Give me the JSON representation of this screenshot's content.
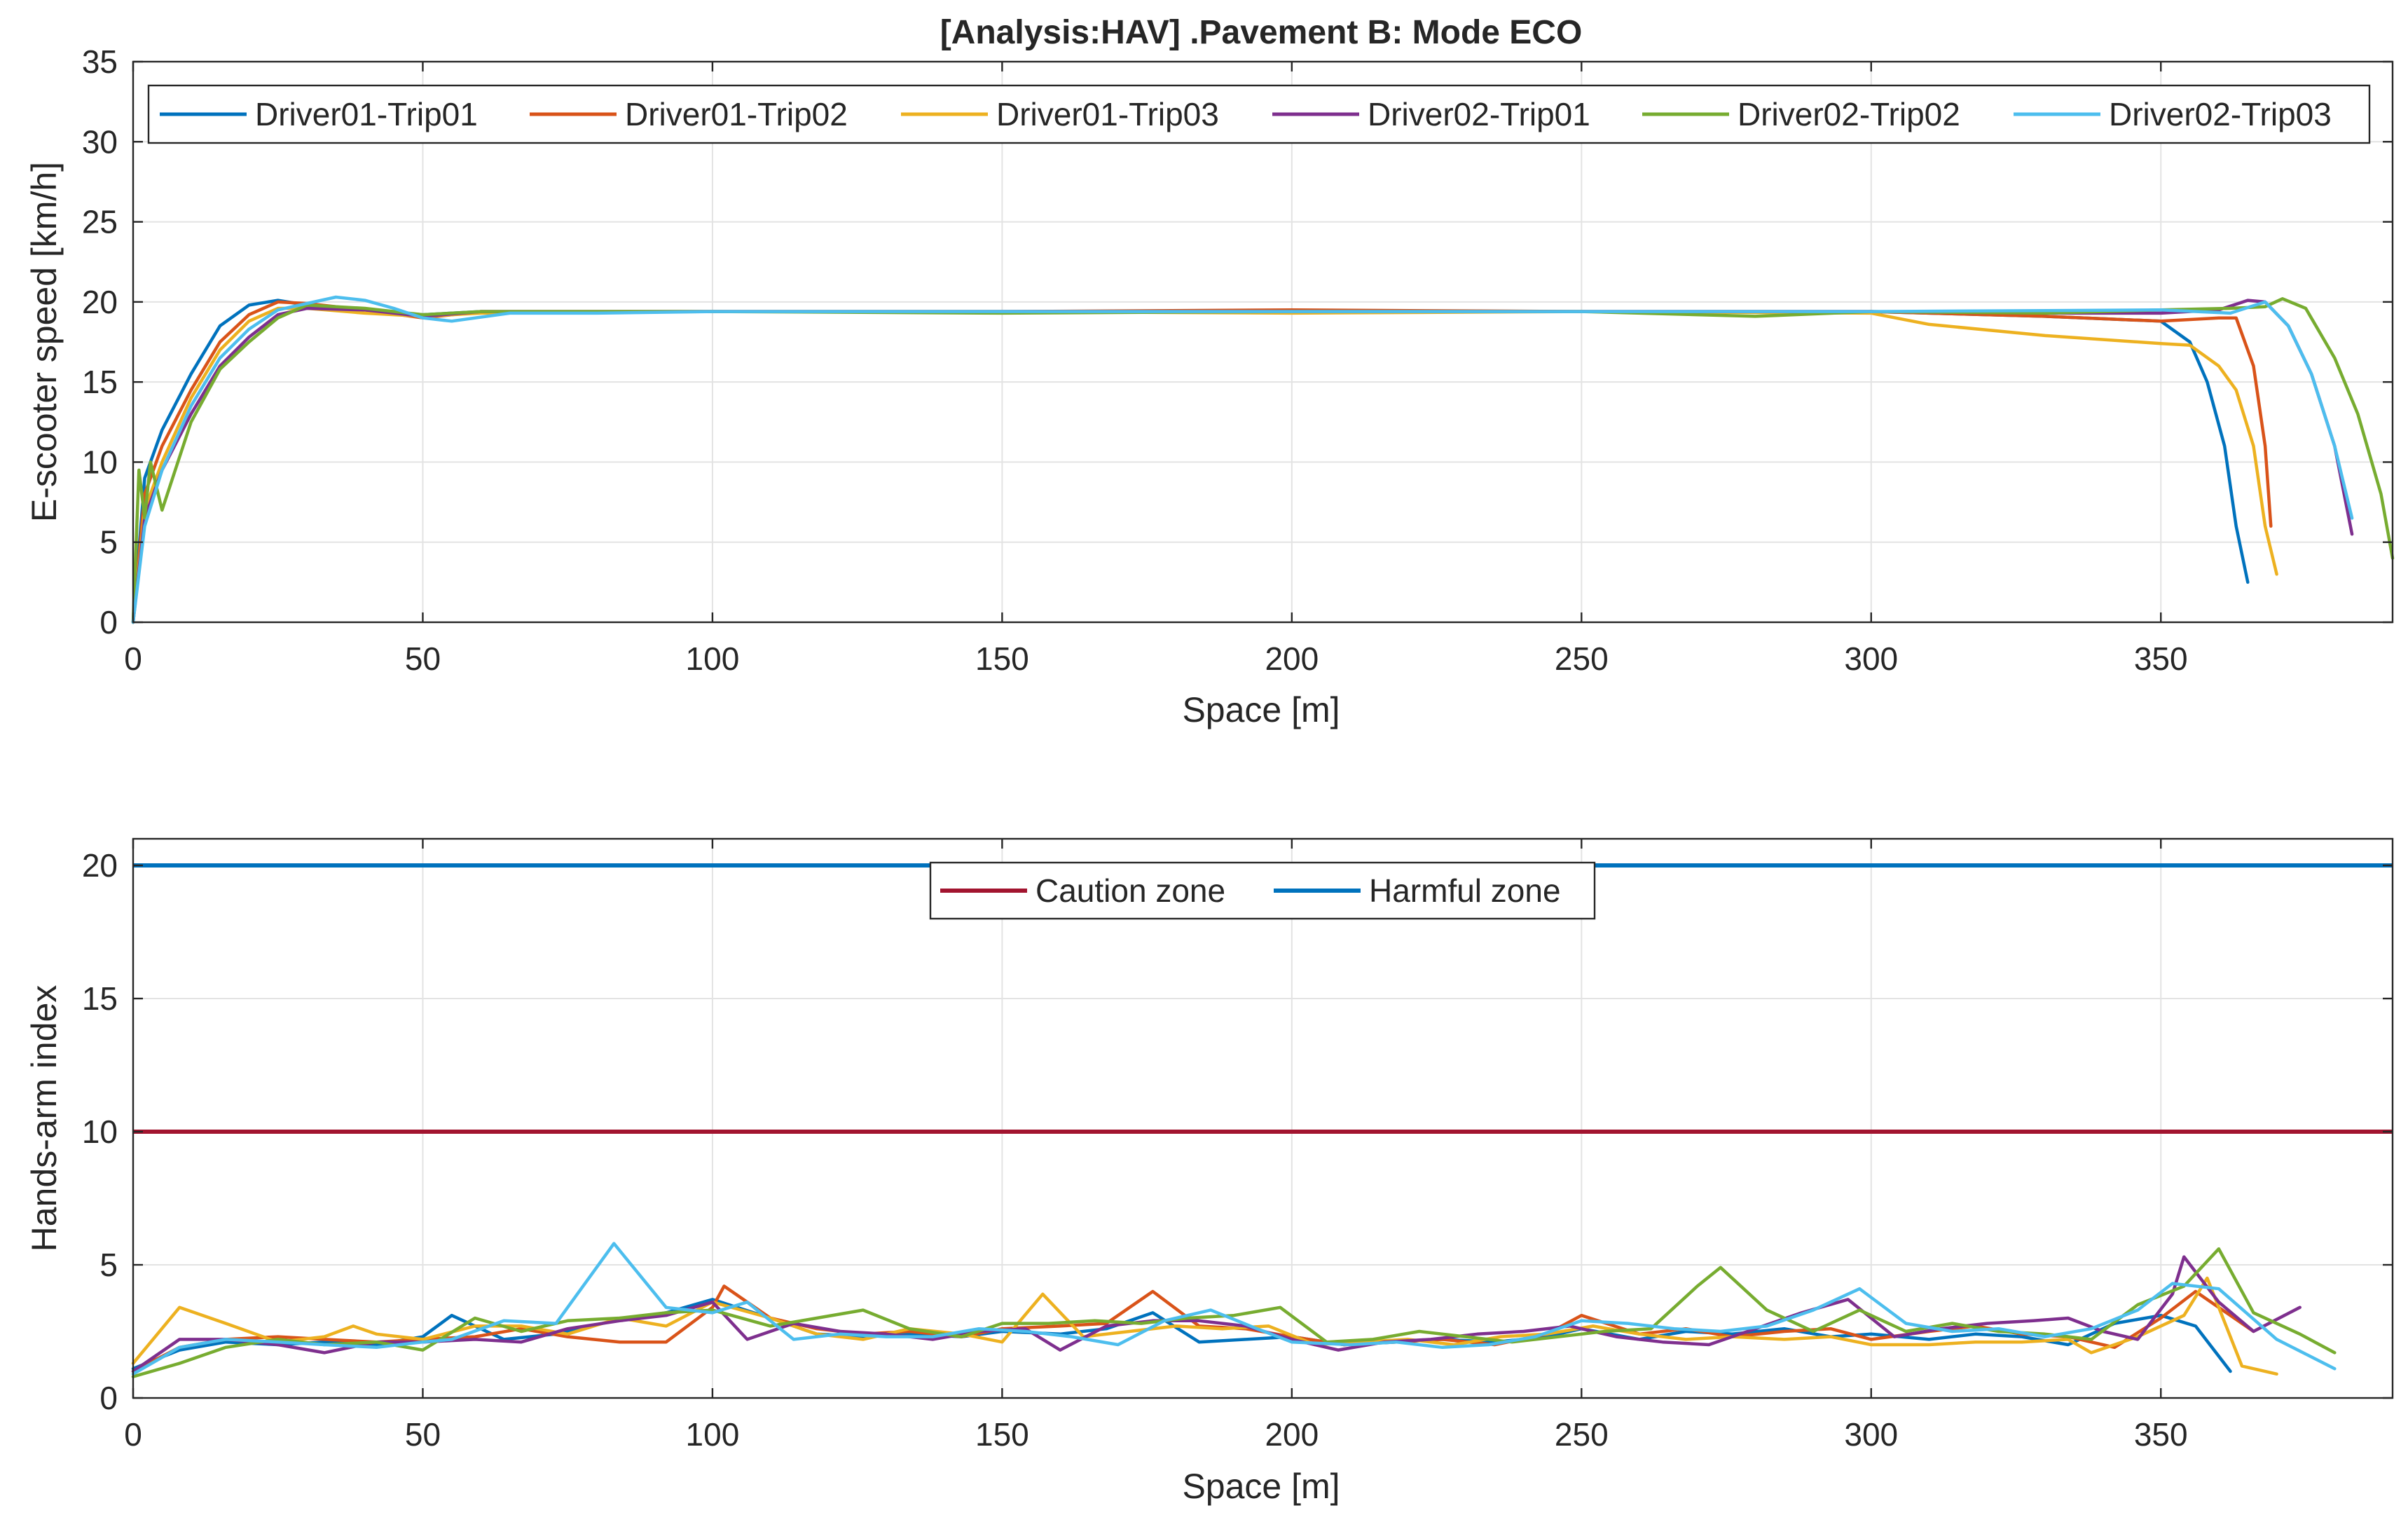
{
  "chart_data": [
    {
      "type": "line",
      "title": "[Analysis:HAV] .Pavement B: Mode ECO",
      "xlabel": "Space [m]",
      "ylabel": "E-scooter speed [km/h]",
      "xlim": [
        0,
        390
      ],
      "ylim": [
        0,
        35
      ],
      "xticks": [
        0,
        50,
        100,
        150,
        200,
        250,
        300,
        350
      ],
      "yticks": [
        0,
        5,
        10,
        15,
        20,
        25,
        30,
        35
      ],
      "grid": true,
      "legend_position": "top",
      "series": [
        {
          "name": "Driver01-Trip01",
          "color": "#0072BD",
          "x": [
            0,
            2,
            5,
            10,
            15,
            20,
            25,
            30,
            40,
            50,
            60,
            100,
            150,
            200,
            250,
            300,
            330,
            350,
            355,
            358,
            361,
            363,
            365
          ],
          "y": [
            0,
            9,
            12,
            15.5,
            18.5,
            19.8,
            20.1,
            19.8,
            19.5,
            19.2,
            19.4,
            19.4,
            19.4,
            19.4,
            19.4,
            19.4,
            19.1,
            18.8,
            17.5,
            15,
            11,
            6,
            2.5
          ]
        },
        {
          "name": "Driver01-Trip02",
          "color": "#D95319",
          "x": [
            0,
            2,
            5,
            10,
            15,
            20,
            25,
            30,
            40,
            50,
            60,
            100,
            150,
            200,
            250,
            300,
            330,
            350,
            360,
            363,
            366,
            368,
            369
          ],
          "y": [
            0,
            8,
            11,
            14.5,
            17.5,
            19.2,
            20,
            19.9,
            19.5,
            19,
            19.4,
            19.4,
            19.4,
            19.5,
            19.4,
            19.4,
            19.1,
            18.8,
            19,
            19,
            16,
            11,
            6
          ]
        },
        {
          "name": "Driver01-Trip03",
          "color": "#EDB120",
          "x": [
            0,
            2,
            5,
            10,
            15,
            20,
            25,
            30,
            40,
            50,
            60,
            100,
            150,
            200,
            250,
            300,
            310,
            330,
            350,
            355,
            360,
            363,
            366,
            368,
            370
          ],
          "y": [
            0,
            7,
            10,
            14,
            17,
            18.8,
            19.6,
            19.6,
            19.3,
            19.1,
            19.3,
            19.4,
            19.4,
            19.3,
            19.4,
            19.3,
            18.6,
            17.9,
            17.4,
            17.3,
            16,
            14.5,
            11,
            6,
            3
          ]
        },
        {
          "name": "Driver02-Trip01",
          "color": "#7E2F8E",
          "x": [
            0,
            2,
            5,
            10,
            15,
            20,
            25,
            30,
            40,
            50,
            60,
            100,
            150,
            200,
            250,
            300,
            330,
            350,
            360,
            365,
            368,
            372,
            376,
            380,
            383
          ],
          "y": [
            0,
            6.5,
            9.5,
            13,
            16,
            17.8,
            19.2,
            19.6,
            19.5,
            19.1,
            19.4,
            19.4,
            19.4,
            19.4,
            19.4,
            19.4,
            19.3,
            19.3,
            19.5,
            20.1,
            20,
            18.5,
            15.5,
            11,
            5.5
          ]
        },
        {
          "name": "Driver02-Trip02",
          "color": "#77AC30",
          "x": [
            0,
            1,
            2,
            3,
            5,
            10,
            15,
            20,
            25,
            30,
            40,
            50,
            60,
            100,
            150,
            200,
            250,
            280,
            300,
            330,
            350,
            362,
            368,
            371,
            375,
            380,
            384,
            388,
            390
          ],
          "y": [
            0,
            9.5,
            6.5,
            10,
            7,
            12.5,
            15.8,
            17.5,
            19,
            19.8,
            19.6,
            19.2,
            19.4,
            19.4,
            19.3,
            19.4,
            19.4,
            19.1,
            19.4,
            19.3,
            19.5,
            19.6,
            19.7,
            20.2,
            19.6,
            16.5,
            13,
            8,
            4
          ]
        },
        {
          "name": "Driver02-Trip03",
          "color": "#4DBEEE",
          "x": [
            0,
            2,
            5,
            10,
            15,
            20,
            25,
            30,
            35,
            40,
            45,
            50,
            55,
            65,
            80,
            100,
            150,
            200,
            250,
            300,
            350,
            362,
            368,
            372,
            376,
            380,
            383
          ],
          "y": [
            0,
            6,
            9.5,
            13.5,
            16.5,
            18.3,
            19.5,
            19.9,
            20.3,
            20.1,
            19.6,
            19,
            18.8,
            19.3,
            19.3,
            19.4,
            19.4,
            19.4,
            19.4,
            19.4,
            19.5,
            19.3,
            20,
            18.5,
            15.5,
            11,
            6.5
          ]
        }
      ]
    },
    {
      "type": "line",
      "title": "",
      "xlabel": "Space [m]",
      "ylabel": "Hands-arm index",
      "xlim": [
        0,
        390
      ],
      "ylim": [
        0,
        21
      ],
      "xticks": [
        0,
        50,
        100,
        150,
        200,
        250,
        300,
        350
      ],
      "yticks": [
        0,
        5,
        10,
        15,
        20
      ],
      "grid": true,
      "legend_position": "top",
      "reference_lines": [
        {
          "name": "Caution zone",
          "color": "#A2142F",
          "y": 10
        },
        {
          "name": "Harmful zone",
          "color": "#0072BD",
          "y": 20
        }
      ],
      "series": [
        {
          "name": "Driver01-Trip01",
          "color": "#0072BD",
          "x": [
            0,
            8,
            16,
            25,
            33,
            42,
            50,
            55,
            64,
            73,
            83,
            92,
            100,
            110,
            118,
            126,
            134,
            143,
            150,
            160,
            168,
            176,
            184,
            192,
            200,
            209,
            218,
            226,
            235,
            244,
            250,
            260,
            268,
            276,
            285,
            293,
            300,
            310,
            318,
            326,
            334,
            342,
            350,
            356,
            362
          ],
          "y": [
            1.1,
            1.8,
            2.1,
            2.0,
            2.1,
            2.0,
            2.3,
            3.1,
            2.2,
            2.4,
            2.9,
            3.2,
            3.7,
            3.0,
            2.4,
            2.3,
            2.4,
            2.3,
            2.5,
            2.4,
            2.6,
            3.2,
            2.1,
            2.2,
            2.3,
            2.0,
            2.1,
            2.2,
            2.1,
            2.3,
            2.6,
            2.2,
            2.5,
            2.4,
            2.6,
            2.3,
            2.4,
            2.2,
            2.4,
            2.3,
            2.0,
            2.8,
            3.1,
            2.7,
            1.0
          ]
        },
        {
          "name": "Driver01-Trip02",
          "color": "#D95319",
          "x": [
            0,
            8,
            16,
            25,
            33,
            42,
            50,
            59,
            67,
            75,
            84,
            92,
            100,
            102,
            110,
            118,
            126,
            134,
            143,
            150,
            160,
            168,
            176,
            184,
            192,
            200,
            209,
            218,
            226,
            235,
            244,
            250,
            260,
            268,
            276,
            285,
            293,
            300,
            310,
            318,
            326,
            334,
            342,
            350,
            356,
            366
          ],
          "y": [
            1.0,
            1.9,
            2.2,
            2.3,
            2.2,
            2.1,
            2.2,
            2.3,
            2.6,
            2.3,
            2.1,
            2.1,
            3.4,
            4.2,
            3.0,
            2.6,
            2.4,
            2.5,
            2.3,
            2.6,
            2.7,
            2.8,
            4.0,
            2.7,
            2.6,
            2.3,
            2.0,
            2.1,
            2.2,
            2.0,
            2.4,
            3.1,
            2.4,
            2.6,
            2.3,
            2.5,
            2.6,
            2.2,
            2.5,
            2.7,
            2.4,
            2.3,
            1.9,
            3.0,
            4.0,
            2.5
          ]
        },
        {
          "name": "Driver01-Trip03",
          "color": "#EDB120",
          "x": [
            0,
            8,
            16,
            25,
            33,
            38,
            42,
            50,
            59,
            67,
            75,
            84,
            92,
            100,
            110,
            118,
            126,
            134,
            143,
            150,
            157,
            164,
            172,
            180,
            188,
            196,
            204,
            212,
            220,
            228,
            236,
            244,
            252,
            260,
            268,
            276,
            285,
            293,
            300,
            310,
            318,
            326,
            334,
            338,
            346,
            354,
            358,
            364,
            370
          ],
          "y": [
            1.3,
            3.4,
            2.8,
            2.1,
            2.3,
            2.7,
            2.4,
            2.2,
            2.7,
            2.7,
            2.4,
            3.0,
            2.7,
            3.6,
            3.0,
            2.4,
            2.2,
            2.6,
            2.4,
            2.1,
            3.9,
            2.3,
            2.5,
            2.7,
            2.6,
            2.7,
            2.0,
            2.1,
            2.2,
            2.0,
            2.3,
            2.4,
            2.7,
            2.4,
            2.2,
            2.3,
            2.2,
            2.3,
            2.0,
            2.0,
            2.1,
            2.1,
            2.2,
            1.7,
            2.3,
            3.1,
            4.5,
            1.2,
            0.9
          ]
        },
        {
          "name": "Driver02-Trip01",
          "color": "#7E2F8E",
          "x": [
            0,
            8,
            16,
            25,
            33,
            42,
            50,
            59,
            67,
            75,
            84,
            92,
            100,
            106,
            114,
            122,
            130,
            138,
            146,
            154,
            160,
            168,
            176,
            184,
            192,
            200,
            208,
            216,
            224,
            232,
            240,
            248,
            256,
            264,
            272,
            280,
            288,
            296,
            304,
            312,
            320,
            328,
            334,
            340,
            346,
            352,
            354,
            360,
            366,
            374
          ],
          "y": [
            1.0,
            2.2,
            2.2,
            2.0,
            1.7,
            2.1,
            2.1,
            2.2,
            2.1,
            2.6,
            2.9,
            3.1,
            3.6,
            2.2,
            2.8,
            2.5,
            2.4,
            2.2,
            2.5,
            2.6,
            1.8,
            2.7,
            2.9,
            2.9,
            2.7,
            2.2,
            1.8,
            2.1,
            2.2,
            2.4,
            2.5,
            2.7,
            2.3,
            2.1,
            2.0,
            2.6,
            3.2,
            3.7,
            2.3,
            2.6,
            2.8,
            2.9,
            3.0,
            2.5,
            2.2,
            3.9,
            5.3,
            3.6,
            2.5,
            3.4
          ]
        },
        {
          "name": "Driver02-Trip02",
          "color": "#77AC30",
          "x": [
            0,
            8,
            16,
            25,
            33,
            42,
            50,
            59,
            67,
            75,
            84,
            92,
            100,
            110,
            118,
            126,
            134,
            143,
            150,
            158,
            166,
            174,
            182,
            190,
            198,
            206,
            214,
            222,
            230,
            238,
            246,
            254,
            262,
            270,
            274,
            282,
            290,
            298,
            306,
            314,
            322,
            330,
            338,
            346,
            354,
            360,
            366,
            374,
            380
          ],
          "y": [
            0.8,
            1.3,
            1.9,
            2.2,
            2.0,
            2.1,
            1.8,
            3.0,
            2.5,
            2.9,
            3.0,
            3.2,
            3.3,
            2.7,
            3.0,
            3.3,
            2.6,
            2.3,
            2.8,
            2.8,
            2.9,
            2.8,
            3.0,
            3.1,
            3.4,
            2.1,
            2.2,
            2.5,
            2.3,
            2.1,
            2.3,
            2.5,
            2.6,
            4.2,
            4.9,
            3.3,
            2.5,
            3.3,
            2.5,
            2.8,
            2.5,
            2.4,
            2.2,
            3.5,
            4.2,
            5.6,
            3.2,
            2.4,
            1.7
          ]
        },
        {
          "name": "Driver02-Trip03",
          "color": "#4DBEEE",
          "x": [
            0,
            8,
            16,
            25,
            33,
            42,
            50,
            55,
            64,
            73,
            83,
            92,
            100,
            106,
            114,
            122,
            130,
            138,
            146,
            154,
            162,
            170,
            178,
            186,
            194,
            200,
            210,
            218,
            226,
            234,
            242,
            250,
            258,
            266,
            274,
            282,
            290,
            298,
            306,
            314,
            322,
            330,
            338,
            346,
            352,
            360,
            370,
            380
          ],
          "y": [
            0.9,
            1.9,
            2.2,
            2.1,
            2.0,
            1.9,
            2.1,
            2.2,
            2.9,
            2.8,
            5.8,
            3.4,
            3.2,
            3.6,
            2.2,
            2.4,
            2.3,
            2.3,
            2.6,
            2.5,
            2.3,
            2.0,
            2.9,
            3.3,
            2.6,
            2.1,
            2.0,
            2.1,
            1.9,
            2.0,
            2.3,
            2.9,
            2.8,
            2.6,
            2.5,
            2.7,
            3.3,
            4.1,
            2.8,
            2.5,
            2.6,
            2.3,
            2.6,
            3.3,
            4.3,
            4.1,
            2.2,
            1.1
          ]
        }
      ]
    }
  ]
}
